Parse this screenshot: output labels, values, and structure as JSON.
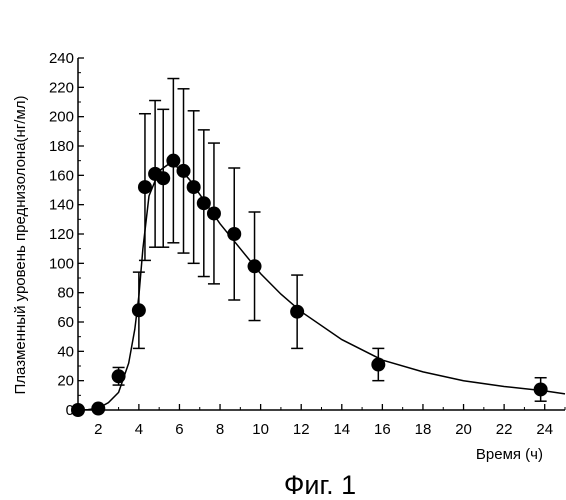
{
  "chart_data": {
    "type": "scatter",
    "title": "",
    "caption": "Фиг. 1",
    "xlabel": "Время (ч)",
    "ylabel": "Плазменный уровень преднизолона(нг/мл)",
    "xlim": [
      1,
      25
    ],
    "ylim": [
      0,
      240
    ],
    "xticks": [
      2,
      4,
      6,
      8,
      10,
      12,
      14,
      16,
      18,
      20,
      22,
      24
    ],
    "yticks": [
      0,
      20,
      40,
      60,
      80,
      100,
      120,
      140,
      160,
      180,
      200,
      220,
      240
    ],
    "grid": false,
    "legend": "none",
    "series": [
      {
        "points": [
          {
            "x": 1,
            "y": 0,
            "err": 0
          },
          {
            "x": 2,
            "y": 1,
            "err": 0
          },
          {
            "x": 3,
            "y": 23,
            "err": 6
          },
          {
            "x": 4,
            "y": 68,
            "err": 26
          },
          {
            "x": 4.3,
            "y": 152,
            "err": 50
          },
          {
            "x": 4.8,
            "y": 161,
            "err": 50
          },
          {
            "x": 5.2,
            "y": 158,
            "err": 47
          },
          {
            "x": 5.7,
            "y": 170,
            "err": 56
          },
          {
            "x": 6.2,
            "y": 163,
            "err": 56
          },
          {
            "x": 6.7,
            "y": 152,
            "err": 52
          },
          {
            "x": 7.2,
            "y": 141,
            "err": 50
          },
          {
            "x": 7.7,
            "y": 134,
            "err": 48
          },
          {
            "x": 8.7,
            "y": 120,
            "err": 45
          },
          {
            "x": 9.7,
            "y": 98,
            "err": 37
          },
          {
            "x": 11.8,
            "y": 67,
            "err": 25
          },
          {
            "x": 15.8,
            "y": 31,
            "err": 11
          },
          {
            "x": 23.8,
            "y": 14,
            "err": 8
          }
        ]
      }
    ],
    "fit_curve": [
      [
        1,
        0
      ],
      [
        1.5,
        0.3
      ],
      [
        2,
        1.2
      ],
      [
        2.5,
        5
      ],
      [
        3,
        12
      ],
      [
        3.5,
        32
      ],
      [
        3.8,
        55
      ],
      [
        4,
        78
      ],
      [
        4.2,
        110
      ],
      [
        4.5,
        146
      ],
      [
        5,
        163
      ],
      [
        5.5,
        168
      ],
      [
        6,
        165
      ],
      [
        6.5,
        157
      ],
      [
        7,
        147
      ],
      [
        7.5,
        137
      ],
      [
        8,
        127
      ],
      [
        9,
        110
      ],
      [
        10,
        93
      ],
      [
        11,
        79
      ],
      [
        12,
        67
      ],
      [
        14,
        48
      ],
      [
        16,
        34
      ],
      [
        18,
        26
      ],
      [
        20,
        20
      ],
      [
        22,
        16
      ],
      [
        24,
        13
      ],
      [
        25,
        11
      ]
    ],
    "colors": {
      "marker": "#000000",
      "line": "#000000"
    }
  }
}
